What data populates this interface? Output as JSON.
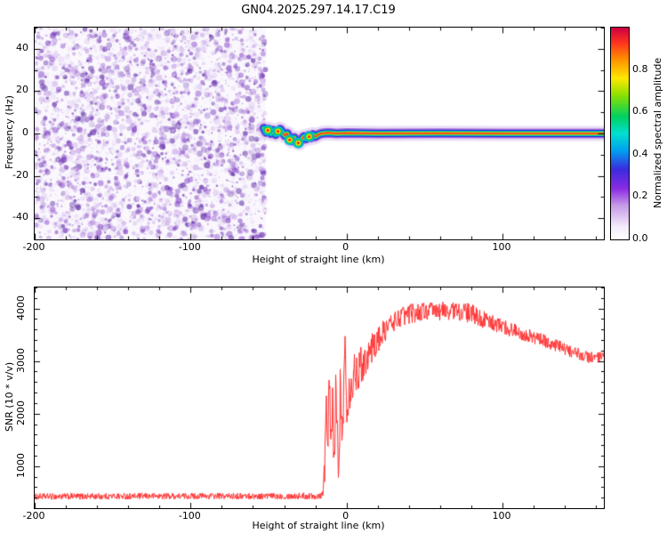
{
  "title": "GN04.2025.297.14.17.C19",
  "chart_data": [
    {
      "type": "heatmap",
      "name": "spectrogram",
      "xlabel": "Height of straight line (km)",
      "ylabel": "Frequency (Hz)",
      "xlim": [
        -200,
        165
      ],
      "ylim": [
        -50,
        50
      ],
      "xticks": [
        [
          -200,
          "-200"
        ],
        [
          -100,
          "-100"
        ],
        [
          0,
          "0"
        ],
        [
          100,
          "100"
        ]
      ],
      "yticks": [
        [
          -40,
          "-40"
        ],
        [
          -20,
          "-20"
        ],
        [
          0,
          "0"
        ],
        [
          20,
          "20"
        ],
        [
          40,
          "40"
        ]
      ],
      "minor": {
        "x": 20,
        "y": 10
      },
      "colorbar": {
        "label": "Normalized spectral amplitude",
        "range": [
          0,
          1
        ],
        "ticks": [
          [
            0,
            "0.0"
          ],
          [
            0.2,
            "0.2"
          ],
          [
            0.4,
            "0.4"
          ],
          [
            0.6,
            "0.6"
          ],
          [
            0.8,
            "0.8"
          ]
        ],
        "stops": [
          [
            0,
            "#ffffff"
          ],
          [
            0.06,
            "#f3eafc"
          ],
          [
            0.16,
            "#c79ae8"
          ],
          [
            0.24,
            "#8a2be2"
          ],
          [
            0.33,
            "#3b2bdd"
          ],
          [
            0.42,
            "#00a0f0"
          ],
          [
            0.5,
            "#00e0d0"
          ],
          [
            0.58,
            "#00d060"
          ],
          [
            0.68,
            "#8ae000"
          ],
          [
            0.76,
            "#ffe800"
          ],
          [
            0.85,
            "#ff9000"
          ],
          [
            0.93,
            "#ff3020"
          ],
          [
            1,
            "#cc0044"
          ]
        ]
      },
      "noise_region": {
        "x_min": -200,
        "x_max": -52,
        "dot_count": 4200,
        "shades": [
          "#e4d2f5",
          "#c9a4ea",
          "#a06cd5",
          "#7d3fc1",
          "#5e2ba6"
        ]
      },
      "signal": {
        "description": "narrow high-amplitude trace near 0 Hz emerging at -52 km, wiggling to -5 Hz until -16 km, then flat at 0 Hz to right edge",
        "centerline": [
          [
            -53,
            2.5
          ],
          [
            -51.5,
            0.5
          ],
          [
            -50,
            2
          ],
          [
            -48.5,
            0
          ],
          [
            -47,
            1.5
          ],
          [
            -45.5,
            -0.5
          ],
          [
            -44,
            1
          ],
          [
            -42.5,
            2
          ],
          [
            -41,
            0.5
          ],
          [
            -39.5,
            -1
          ],
          [
            -38,
            0
          ],
          [
            -36.5,
            -2.5
          ],
          [
            -35,
            -3.5
          ],
          [
            -33.5,
            -2
          ],
          [
            -32,
            -4
          ],
          [
            -30.5,
            -4.5
          ],
          [
            -29,
            -3
          ],
          [
            -27.5,
            -1.5
          ],
          [
            -26,
            -2.5
          ],
          [
            -24.5,
            -1
          ],
          [
            -23,
            -2
          ],
          [
            -21.5,
            -0.5
          ],
          [
            -20,
            -1.5
          ],
          [
            -18,
            -0.5
          ],
          [
            -16,
            0
          ],
          [
            -12,
            0.3
          ],
          [
            -6,
            0
          ],
          [
            0,
            0.2
          ],
          [
            20,
            0
          ],
          [
            60,
            0.1
          ],
          [
            100,
            0
          ],
          [
            140,
            0
          ],
          [
            165,
            0
          ]
        ],
        "layers": [
          {
            "color": "#d8c2ef",
            "width": 17,
            "alpha": 0.55
          },
          {
            "color": "#9b59d6",
            "width": 11,
            "alpha": 0.85
          },
          {
            "color": "#2222dd",
            "width": 8,
            "alpha": 1
          },
          {
            "color": "#00b8e8",
            "width": 6,
            "alpha": 1
          },
          {
            "color": "#00d050",
            "width": 4.4,
            "alpha": 1
          },
          {
            "color": "#ffe000",
            "width": 2.8,
            "alpha": 1
          },
          {
            "color": "#ff2020",
            "width": 1.5,
            "alpha": 1
          }
        ],
        "blobs": [
          [
            -50.5,
            1.5
          ],
          [
            -44,
            1
          ],
          [
            -36.5,
            -3
          ],
          [
            -31,
            -4.5
          ],
          [
            -24,
            -1.5
          ]
        ],
        "blob_layers": [
          {
            "color": "#00b8e8",
            "r": 6
          },
          {
            "color": "#00d050",
            "r": 4.4
          },
          {
            "color": "#ffe000",
            "r": 3
          },
          {
            "color": "#ff2020",
            "r": 1.6
          }
        ]
      }
    },
    {
      "type": "line",
      "name": "snr",
      "xlabel": "Height of straight line (km)",
      "ylabel": "SNR (10 * v/v)",
      "xlim": [
        -200,
        165
      ],
      "ylim": [
        200,
        4400
      ],
      "xticks": [
        [
          -200,
          "-200"
        ],
        [
          -100,
          "-100"
        ],
        [
          0,
          "0"
        ],
        [
          100,
          "100"
        ]
      ],
      "yticks": [
        [
          1000,
          "1000"
        ],
        [
          2000,
          "2000"
        ],
        [
          3000,
          "3000"
        ],
        [
          4000,
          "4000"
        ]
      ],
      "minor": {
        "x": 20,
        "y": 200
      },
      "color": "#ff3333",
      "points": [
        [
          -200,
          420,
          60
        ],
        [
          -160,
          425,
          60
        ],
        [
          -120,
          430,
          60
        ],
        [
          -80,
          430,
          60
        ],
        [
          -40,
          430,
          60
        ],
        [
          -20,
          435,
          70
        ],
        [
          -16,
          450,
          80
        ],
        [
          -14,
          900,
          400
        ],
        [
          -13,
          2600,
          350
        ],
        [
          -12,
          1300,
          500
        ],
        [
          -11,
          2750,
          350
        ],
        [
          -10,
          1100,
          450
        ],
        [
          -9,
          2300,
          550
        ],
        [
          -8,
          950,
          350
        ],
        [
          -7,
          2350,
          500
        ],
        [
          -6,
          1500,
          550
        ],
        [
          -5,
          1050,
          350
        ],
        [
          -4,
          2550,
          600
        ],
        [
          -3,
          1350,
          450
        ],
        [
          -2,
          2100,
          500
        ],
        [
          -1,
          3650,
          250
        ],
        [
          0,
          2250,
          450
        ],
        [
          2,
          2500,
          450
        ],
        [
          5,
          2750,
          400
        ],
        [
          10,
          2950,
          350
        ],
        [
          15,
          3200,
          300
        ],
        [
          20,
          3400,
          260
        ],
        [
          25,
          3600,
          220
        ],
        [
          30,
          3750,
          200
        ],
        [
          35,
          3850,
          190
        ],
        [
          40,
          3900,
          190
        ],
        [
          50,
          3950,
          180
        ],
        [
          60,
          3950,
          180
        ],
        [
          70,
          3960,
          180
        ],
        [
          80,
          3900,
          190
        ],
        [
          90,
          3760,
          160
        ],
        [
          100,
          3650,
          150
        ],
        [
          108,
          3580,
          140
        ],
        [
          115,
          3500,
          130
        ],
        [
          122,
          3430,
          130
        ],
        [
          130,
          3350,
          130
        ],
        [
          140,
          3220,
          120
        ],
        [
          150,
          3120,
          120
        ],
        [
          158,
          3060,
          110
        ],
        [
          165,
          3060,
          110
        ]
      ]
    }
  ]
}
